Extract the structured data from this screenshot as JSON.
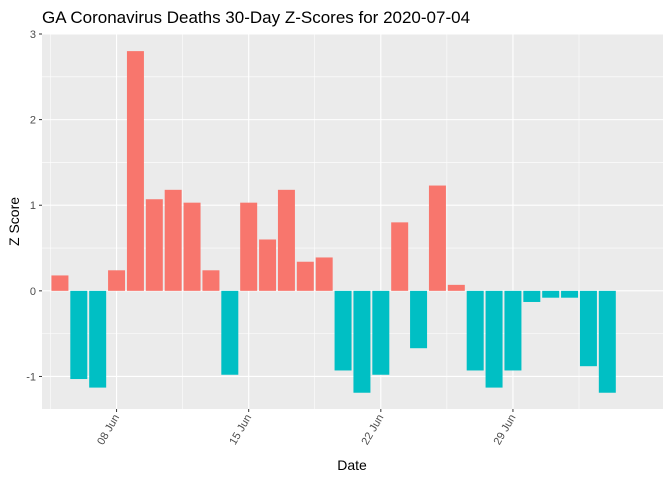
{
  "chart_data": {
    "type": "bar",
    "title": "GA Coronavirus Deaths 30-Day Z-Scores for 2020-07-04",
    "xlabel": "Date",
    "ylabel": "Z Score",
    "ylim": [
      -1.38,
      3.0
    ],
    "y_ticks": [
      -1,
      0,
      1,
      2,
      3
    ],
    "x_ticks": [
      {
        "label": "08 Jun",
        "day_index": 3
      },
      {
        "label": "15 Jun",
        "day_index": 10
      },
      {
        "label": "22 Jun",
        "day_index": 17
      },
      {
        "label": "29 Jun",
        "day_index": 24
      }
    ],
    "x_range_days": [
      -0.95,
      31.95
    ],
    "colors": {
      "positive": "#F8766D",
      "negative": "#00BFC4",
      "panel": "#EBEBEB",
      "grid_major": "#FFFFFF",
      "tick": "#333333"
    },
    "categories": [
      "2020-06-05",
      "2020-06-06",
      "2020-06-07",
      "2020-06-08",
      "2020-06-09",
      "2020-06-10",
      "2020-06-11",
      "2020-06-12",
      "2020-06-13",
      "2020-06-14",
      "2020-06-15",
      "2020-06-16",
      "2020-06-17",
      "2020-06-18",
      "2020-06-19",
      "2020-06-20",
      "2020-06-21",
      "2020-06-22",
      "2020-06-23",
      "2020-06-24",
      "2020-06-25",
      "2020-06-26",
      "2020-06-27",
      "2020-06-28",
      "2020-06-29",
      "2020-06-30",
      "2020-07-01",
      "2020-07-02",
      "2020-07-03",
      "2020-07-04"
    ],
    "values": [
      0.18,
      -1.03,
      -1.13,
      0.24,
      2.8,
      1.07,
      1.18,
      1.03,
      0.24,
      -0.98,
      1.03,
      0.6,
      1.18,
      0.34,
      0.39,
      -0.93,
      -1.19,
      -0.98,
      0.8,
      -0.67,
      1.23,
      0.07,
      -0.93,
      -1.13,
      -0.93,
      -0.13,
      -0.08,
      -0.08,
      -0.88,
      -1.19
    ]
  }
}
